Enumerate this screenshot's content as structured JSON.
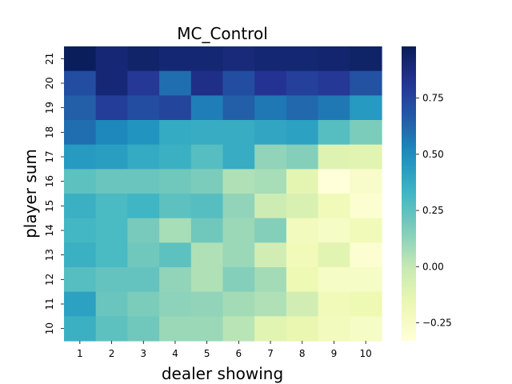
{
  "chart_data": {
    "type": "heatmap",
    "title": "MC_Control",
    "xlabel": "dealer showing",
    "ylabel": "player sum",
    "x_categories": [
      "1",
      "2",
      "3",
      "4",
      "5",
      "6",
      "7",
      "8",
      "9",
      "10"
    ],
    "y_categories": [
      "21",
      "20",
      "19",
      "18",
      "17",
      "16",
      "15",
      "14",
      "13",
      "12",
      "11",
      "10"
    ],
    "values": [
      [
        0.97,
        0.9,
        0.93,
        0.91,
        0.91,
        0.89,
        0.91,
        0.91,
        0.92,
        0.94
      ],
      [
        0.72,
        0.9,
        0.8,
        0.6,
        0.85,
        0.72,
        0.82,
        0.77,
        0.8,
        0.7
      ],
      [
        0.65,
        0.78,
        0.72,
        0.75,
        0.55,
        0.65,
        0.57,
        0.62,
        0.57,
        0.45
      ],
      [
        0.6,
        0.52,
        0.47,
        0.38,
        0.37,
        0.37,
        0.4,
        0.42,
        0.27,
        0.17
      ],
      [
        0.45,
        0.43,
        0.38,
        0.35,
        0.27,
        0.37,
        0.12,
        0.15,
        -0.1,
        -0.12
      ],
      [
        0.25,
        0.22,
        0.22,
        0.2,
        0.17,
        0.05,
        0.07,
        -0.13,
        -0.33,
        -0.27
      ],
      [
        0.35,
        0.3,
        0.33,
        0.25,
        0.27,
        0.12,
        -0.03,
        -0.08,
        -0.2,
        -0.3
      ],
      [
        0.32,
        0.3,
        0.18,
        0.07,
        0.2,
        0.1,
        0.15,
        -0.22,
        -0.25,
        -0.2
      ],
      [
        0.35,
        0.3,
        0.2,
        0.25,
        0.05,
        0.1,
        -0.05,
        -0.2,
        -0.12,
        -0.3
      ],
      [
        0.27,
        0.23,
        0.23,
        0.12,
        0.05,
        0.15,
        0.08,
        -0.18,
        -0.25,
        -0.25
      ],
      [
        0.42,
        0.22,
        0.17,
        0.13,
        0.12,
        0.08,
        0.05,
        -0.05,
        -0.2,
        -0.18
      ],
      [
        0.35,
        0.25,
        0.2,
        0.1,
        0.1,
        0.03,
        -0.12,
        -0.15,
        -0.22,
        -0.25
      ]
    ],
    "vmin": -0.33,
    "vmax": 0.98,
    "colormap": "YlGnBu",
    "colorbar_ticks": [
      -0.25,
      0.0,
      0.25,
      0.5,
      0.75
    ],
    "colorbar_tick_labels": [
      "−0.25",
      "0.00",
      "0.25",
      "0.50",
      "0.75"
    ]
  }
}
